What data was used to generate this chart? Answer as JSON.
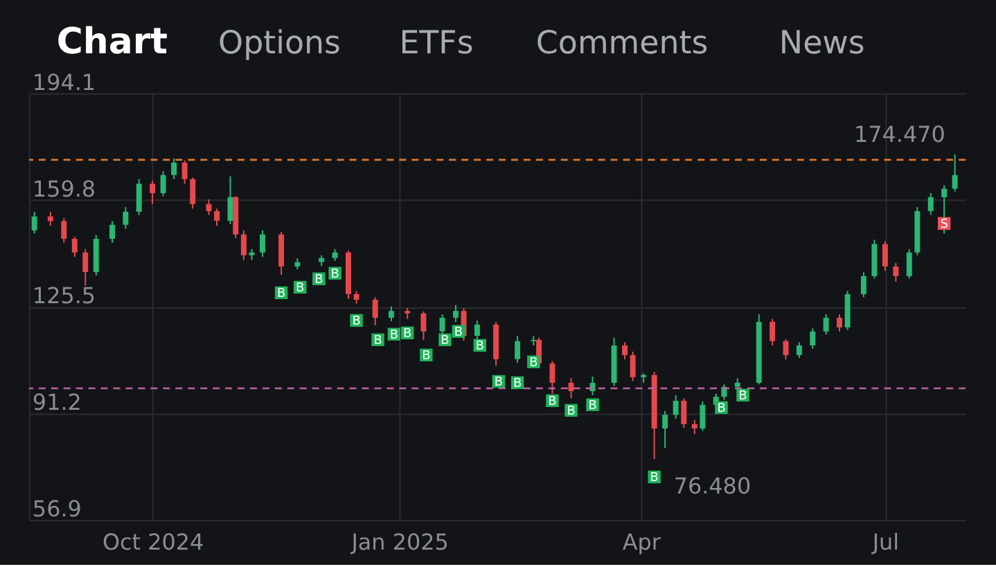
{
  "chart_data": {
    "type": "candlestick",
    "x": [
      "2024-08-18",
      "2024-08-24",
      "2024-08-29",
      "2024-09-02",
      "2024-09-06",
      "2024-09-10",
      "2024-09-16",
      "2024-09-21",
      "2024-09-26",
      "2024-10-01",
      "2024-10-05",
      "2024-10-09",
      "2024-10-13",
      "2024-10-16",
      "2024-10-22",
      "2024-10-25",
      "2024-10-30",
      "2024-11-01",
      "2024-11-04",
      "2024-11-07",
      "2024-11-11",
      "2024-11-18",
      "2024-11-24",
      "2024-12-03",
      "2024-12-08",
      "2024-12-13",
      "2024-12-16",
      "2024-12-23",
      "2024-12-29",
      "2025-01-04",
      "2025-01-10",
      "2025-01-17",
      "2025-01-22",
      "2025-01-25",
      "2025-01-30",
      "2025-02-06",
      "2025-02-14",
      "2025-02-20",
      "2025-02-22",
      "2025-02-27",
      "2025-03-06",
      "2025-03-14",
      "2025-03-22",
      "2025-03-26",
      "2025-03-29",
      "2025-04-02",
      "2025-04-06",
      "2025-04-10",
      "2025-04-14",
      "2025-04-17",
      "2025-04-21",
      "2025-04-24",
      "2025-04-29",
      "2025-05-02",
      "2025-05-07",
      "2025-05-15",
      "2025-05-20",
      "2025-05-25",
      "2025-05-30",
      "2025-06-04",
      "2025-06-09",
      "2025-06-14",
      "2025-06-17",
      "2025-06-23",
      "2025-06-27",
      "2025-07-01",
      "2025-07-05",
      "2025-07-10",
      "2025-07-13",
      "2025-07-18",
      "2025-07-23",
      "2025-07-27"
    ],
    "ohlc": [
      [
        150,
        156,
        149,
        154.5
      ],
      [
        154.5,
        156,
        151.5,
        153
      ],
      [
        153,
        154,
        146,
        147.3
      ],
      [
        147.3,
        148,
        141.5,
        142.9
      ],
      [
        142.9,
        144,
        132.2,
        136.6
      ],
      [
        136.6,
        148.5,
        135.5,
        147.3
      ],
      [
        147.3,
        153,
        146,
        151.8
      ],
      [
        151.8,
        157.5,
        150.5,
        156
      ],
      [
        156,
        166.5,
        155,
        165
      ],
      [
        165,
        166,
        158.5,
        162
      ],
      [
        162,
        169,
        161,
        167.8
      ],
      [
        167.8,
        173.2,
        166.5,
        171.8
      ],
      [
        171.8,
        172.5,
        165,
        166.5
      ],
      [
        166.5,
        167,
        157,
        158.5
      ],
      [
        158.5,
        160,
        155,
        156.2
      ],
      [
        156.2,
        157,
        151.5,
        153.1
      ],
      [
        153.1,
        167.4,
        152,
        160.7
      ],
      [
        160.7,
        161,
        147.5,
        148.7
      ],
      [
        148.7,
        150,
        140.5,
        142
      ],
      [
        142,
        144,
        140.5,
        142.9
      ],
      [
        142.9,
        150,
        141.5,
        148.7
      ],
      [
        148.7,
        149.5,
        135.7,
        138.4
      ],
      [
        138.4,
        141,
        137.5,
        139.8
      ],
      [
        139.8,
        142,
        138.5,
        141.1
      ],
      [
        141.1,
        144,
        140.2,
        142.9
      ],
      [
        142.9,
        143.5,
        128,
        129.5
      ],
      [
        129.5,
        130.5,
        126.5,
        127.7
      ],
      [
        127.7,
        128.5,
        119.5,
        121.9
      ],
      [
        121.9,
        125.5,
        120.8,
        124.1
      ],
      [
        124.1,
        125,
        121.5,
        123.3
      ],
      [
        123.3,
        124,
        114.8,
        117.5
      ],
      [
        117.5,
        123,
        116.5,
        121.9
      ],
      [
        121.9,
        126,
        120.5,
        124.1
      ],
      [
        124.1,
        125,
        114.5,
        116.1
      ],
      [
        116.1,
        121,
        115,
        119.7
      ],
      [
        119.7,
        120.5,
        106.5,
        108.6
      ],
      [
        108.6,
        116,
        107.5,
        114.4
      ],
      [
        114.4,
        116,
        113,
        114.8
      ],
      [
        114.8,
        115.5,
        106,
        107.2
      ],
      [
        107.2,
        108,
        97.5,
        101
      ],
      [
        101,
        102.5,
        96,
        98.3
      ],
      [
        98.3,
        103,
        97,
        101
      ],
      [
        101,
        115.5,
        100,
        113
      ],
      [
        113,
        114,
        108.5,
        109.9
      ],
      [
        109.9,
        111,
        101.5,
        102.8
      ],
      [
        102.8,
        104,
        101,
        103.5
      ],
      [
        103.5,
        104.5,
        76.48,
        86.3
      ],
      [
        86.3,
        92,
        80,
        90.7
      ],
      [
        90.7,
        97,
        89.5,
        95.2
      ],
      [
        95.2,
        96,
        86.5,
        87.7
      ],
      [
        87.7,
        89,
        84.5,
        86.3
      ],
      [
        86.3,
        95,
        85.5,
        93.9
      ],
      [
        93.9,
        97.5,
        93,
        96.5
      ],
      [
        96.5,
        100.5,
        95.5,
        99.7
      ],
      [
        99.7,
        102.5,
        98,
        101
      ],
      [
        101,
        123,
        100.5,
        120.6
      ],
      [
        120.6,
        121.5,
        113,
        114.4
      ],
      [
        114.4,
        115,
        108.5,
        109.9
      ],
      [
        109.9,
        114,
        109,
        113
      ],
      [
        113,
        118.5,
        112,
        117.5
      ],
      [
        117.5,
        123,
        116.5,
        121.9
      ],
      [
        121.9,
        123,
        117.5,
        118.8
      ],
      [
        118.8,
        130.5,
        118,
        129.5
      ],
      [
        129.5,
        136.5,
        128.5,
        135.3
      ],
      [
        135.3,
        147,
        134.5,
        145.6
      ],
      [
        145.6,
        146.5,
        137,
        138.4
      ],
      [
        138.4,
        139.5,
        133.5,
        135.3
      ],
      [
        135.3,
        144,
        134.5,
        142.9
      ],
      [
        142.9,
        157.5,
        142,
        156.2
      ],
      [
        156.2,
        162,
        155,
        160.7
      ],
      [
        160.7,
        164.5,
        149,
        163.4
      ],
      [
        163.4,
        174.47,
        162.5,
        167.8
      ]
    ],
    "colors": [
      "#2bb673",
      "#e5484d",
      "#e5484d",
      "#e5484d",
      "#e5484d",
      "#2bb673",
      "#2bb673",
      "#2bb673",
      "#2bb673",
      "#e5484d",
      "#2bb673",
      "#2bb673",
      "#e5484d",
      "#e5484d",
      "#e5484d",
      "#e5484d",
      "#2bb673",
      "#e5484d",
      "#e5484d",
      "#2bb673",
      "#2bb673",
      "#e5484d",
      "#2bb673",
      "#2bb673",
      "#2bb673",
      "#e5484d",
      "#e5484d",
      "#e5484d",
      "#2bb673",
      "#e5484d",
      "#e5484d",
      "#2bb673",
      "#2bb673",
      "#e5484d",
      "#2bb673",
      "#e5484d",
      "#2bb673",
      "#2bb673",
      "#e5484d",
      "#e5484d",
      "#e5484d",
      "#2bb673",
      "#2bb673",
      "#e5484d",
      "#e5484d",
      "#2bb673",
      "#e5484d",
      "#2bb673",
      "#2bb673",
      "#e5484d",
      "#e5484d",
      "#2bb673",
      "#2bb673",
      "#2bb673",
      "#2bb673",
      "#2bb673",
      "#e5484d",
      "#e5484d",
      "#2bb673",
      "#2bb673",
      "#2bb673",
      "#e5484d",
      "#2bb673",
      "#2bb673",
      "#2bb673",
      "#e5484d",
      "#e5484d",
      "#2bb673",
      "#2bb673",
      "#2bb673",
      "#2bb673",
      "#2bb673"
    ],
    "xlim": [
      "2024-08-16",
      "2025-07-31"
    ],
    "xticks": [
      {
        "value": "2024-10-01",
        "label": "Oct 2024"
      },
      {
        "value": "2025-01-01",
        "label": "Jan 2025"
      },
      {
        "value": "2025-04-01",
        "label": "Apr"
      },
      {
        "value": "2025-07-01",
        "label": "Jul"
      }
    ],
    "ylim": [
      56.9,
      194.1
    ],
    "yticks": [
      56.9,
      91.2,
      125.5,
      159.8,
      194.1
    ],
    "grid": true,
    "ref_lines": [
      {
        "axis": "y",
        "value": 172.7,
        "color": "#e0782a",
        "line_style": "dashed"
      },
      {
        "axis": "y",
        "value": 99.2,
        "color": "#c060a0",
        "line_style": "dashed"
      }
    ],
    "annotations": [
      "Chart",
      "Options",
      "ETFs",
      "Comments",
      "News",
      {
        "text": "174.470",
        "x": "2025-07-27",
        "y": 174.47
      },
      {
        "text": "76.480",
        "x": "2025-04-06",
        "y": 76.48
      },
      {
        "text": "B",
        "x": "2024-11-18",
        "y": 135.7
      },
      {
        "text": "B",
        "x": "2024-11-25",
        "y": 137.5
      },
      {
        "text": "B",
        "x": "2024-12-02",
        "y": 140.2
      },
      {
        "text": "B",
        "x": "2024-12-08",
        "y": 142
      },
      {
        "text": "B",
        "x": "2024-12-16",
        "y": 126.8
      },
      {
        "text": "B",
        "x": "2024-12-24",
        "y": 120.6
      },
      {
        "text": "B",
        "x": "2024-12-30",
        "y": 122.4
      },
      {
        "text": "B",
        "x": "2025-01-04",
        "y": 122.8
      },
      {
        "text": "B",
        "x": "2025-01-11",
        "y": 115.7
      },
      {
        "text": "B",
        "x": "2025-01-18",
        "y": 120.6
      },
      {
        "text": "B",
        "x": "2025-01-23",
        "y": 123.3
      },
      {
        "text": "B",
        "x": "2025-01-31",
        "y": 118.8
      },
      {
        "text": "B",
        "x": "2025-02-07",
        "y": 107.2
      },
      {
        "text": "B",
        "x": "2025-02-14",
        "y": 106.8
      },
      {
        "text": "B",
        "x": "2025-02-20",
        "y": 113.5
      },
      {
        "text": "B",
        "x": "2025-02-27",
        "y": 101
      },
      {
        "text": "B",
        "x": "2025-03-06",
        "y": 97.9
      },
      {
        "text": "B",
        "x": "2025-03-14",
        "y": 99.7
      },
      {
        "text": "B",
        "x": "2025-04-06",
        "y": 76.48
      },
      {
        "text": "B",
        "x": "2025-05-01",
        "y": 98.8
      },
      {
        "text": "B",
        "x": "2025-05-09",
        "y": 102.8
      },
      {
        "text": "S",
        "x": "2025-07-23",
        "y": 158
      }
    ]
  }
}
